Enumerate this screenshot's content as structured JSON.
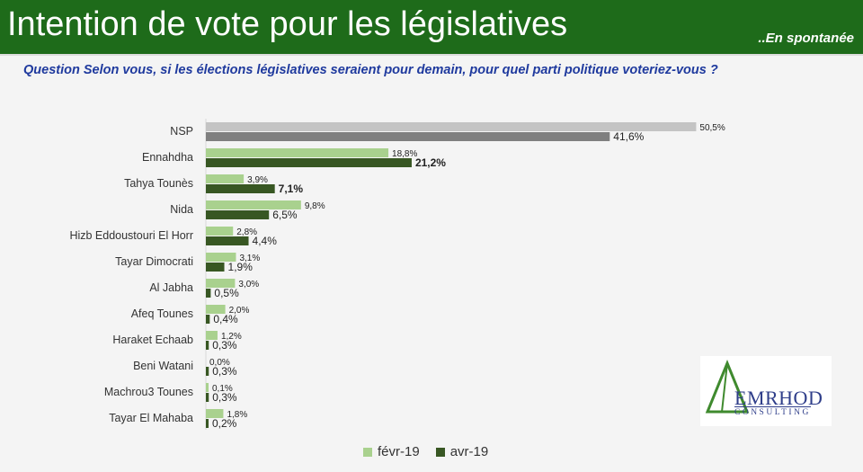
{
  "header": {
    "title": "Intention de vote pour les législatives",
    "subtitle": "..En spontanée"
  },
  "question": "Question Selon vous, si les élections législatives seraient pour demain, pour quel parti politique voteriez-vous ?",
  "logo": {
    "name": "EMRHOD",
    "tagline": "CONSULTING"
  },
  "colors": {
    "header_bg": "#1e6b1a",
    "question_text": "#1f3a9e",
    "nsp_feb": "#c4c4c4",
    "nsp_apr": "#7f7f7f",
    "feb": "#a9d18e",
    "apr": "#385723"
  },
  "chart_data": {
    "type": "bar",
    "orientation": "horizontal",
    "categories": [
      "NSP",
      "Ennahdha",
      "Tahya Tounès",
      "Nida",
      "Hizb Eddoustouri El Horr",
      "Tayar Dimocrati",
      "Al Jabha",
      "Afeq Tounes",
      "Haraket Echaab",
      "Beni Watani",
      "Machrou3 Tounes",
      "Tayar El Mahaba"
    ],
    "series": [
      {
        "name": "févr-19",
        "values": [
          50.5,
          18.8,
          3.9,
          9.8,
          2.8,
          3.1,
          3.0,
          2.0,
          1.2,
          0.0,
          0.1,
          1.8
        ],
        "labels": [
          "50,5%",
          "18,8%",
          "3,9%",
          "9,8%",
          "2,8%",
          "3,1%",
          "3,0%",
          "2,0%",
          "1,2%",
          "0,0%",
          "0,1%",
          "1,8%"
        ]
      },
      {
        "name": "avr-19",
        "values": [
          41.6,
          21.2,
          7.1,
          6.5,
          4.4,
          1.9,
          0.5,
          0.4,
          0.3,
          0.3,
          0.3,
          0.2
        ],
        "labels": [
          "41,6%",
          "21,2%",
          "7,1%",
          "6,5%",
          "4,4%",
          "1,9%",
          "0,5%",
          "0,4%",
          "0,3%",
          "0,3%",
          "0,3%",
          "0,2%"
        ]
      }
    ],
    "bold_labels": [
      "21,2%",
      "7,1%"
    ],
    "legend_position": "bottom",
    "grid": false
  }
}
